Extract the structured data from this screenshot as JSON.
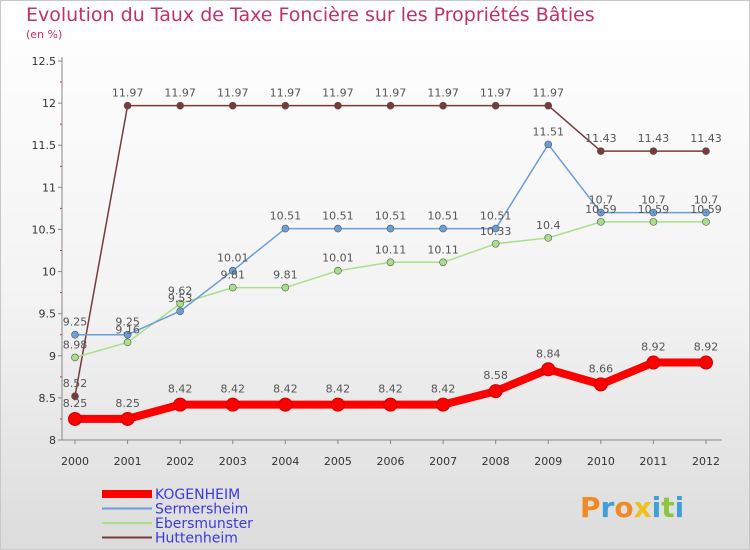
{
  "title": "Evolution du Taux de Taxe Foncière sur les Propriétés Bâties",
  "unit_label": "(en %)",
  "chart_data": {
    "type": "line",
    "title": "Evolution du Taux de Taxe Foncière sur les Propriétés Bâties",
    "ylabel": "(en %)",
    "xlabel": "",
    "categories": [
      "2000",
      "2001",
      "2002",
      "2003",
      "2004",
      "2005",
      "2006",
      "2007",
      "2008",
      "2009",
      "2010",
      "2011",
      "2012"
    ],
    "ylim": [
      8,
      12.5
    ],
    "yticks": [
      "8",
      "8.5",
      "9",
      "9.5",
      "10",
      "10.5",
      "11",
      "11.5",
      "12",
      "12.5"
    ],
    "grid": false,
    "legend_position": "bottom-left",
    "series": [
      {
        "name": "KOGENHEIM",
        "color": "#ff0000",
        "values": [
          8.25,
          8.25,
          8.42,
          8.42,
          8.42,
          8.42,
          8.42,
          8.42,
          8.58,
          8.84,
          8.66,
          8.92,
          8.92
        ],
        "labels": [
          "8.25",
          "8.25",
          "8.42",
          "8.42",
          "8.42",
          "8.42",
          "8.42",
          "8.42",
          "8.58",
          "8.84",
          "8.66",
          "8.92",
          "8.92"
        ]
      },
      {
        "name": "Sermersheim",
        "color": "#6a9ed6",
        "values": [
          9.25,
          9.25,
          9.53,
          10.01,
          10.51,
          10.51,
          10.51,
          10.51,
          10.51,
          11.51,
          10.7,
          10.7,
          10.7
        ],
        "labels": [
          "9.25",
          "9.25",
          "9.53",
          "10.01",
          "10.51",
          "10.51",
          "10.51",
          "10.51",
          "10.51",
          "11.51",
          "10.7",
          "10.7",
          "10.7"
        ]
      },
      {
        "name": "Ebersmunster",
        "color": "#a8e08a",
        "values": [
          8.98,
          9.16,
          9.62,
          9.81,
          9.81,
          10.01,
          10.11,
          10.11,
          10.33,
          10.4,
          10.59,
          10.59,
          10.59
        ],
        "labels": [
          "8.98",
          "9.16",
          "9.62",
          "9.81",
          "9.81",
          "10.01",
          "10.11",
          "10.11",
          "10.33",
          "10.4",
          "10.59",
          "10.59",
          "10.59"
        ]
      },
      {
        "name": "Huttenheim",
        "color": "#7a3a3a",
        "values": [
          8.52,
          11.97,
          11.97,
          11.97,
          11.97,
          11.97,
          11.97,
          11.97,
          11.97,
          11.97,
          11.43,
          11.43,
          11.43
        ],
        "labels": [
          "8.52",
          "11.97",
          "11.97",
          "11.97",
          "11.97",
          "11.97",
          "11.97",
          "11.97",
          "11.97",
          "11.97",
          "11.43",
          "11.43",
          "11.43"
        ]
      }
    ]
  },
  "logo": {
    "text": "Proxiti",
    "letters": [
      {
        "char": "P",
        "color": "#f08a24"
      },
      {
        "char": "r",
        "color": "#3fa0d8"
      },
      {
        "char": "o",
        "color": "#f08a24"
      },
      {
        "char": "x",
        "color": "#f0c020"
      },
      {
        "char": "i",
        "color": "#3fa0d8"
      },
      {
        "char": "t",
        "color": "#8cc63f"
      },
      {
        "char": "i",
        "color": "#3fa0d8"
      }
    ]
  }
}
